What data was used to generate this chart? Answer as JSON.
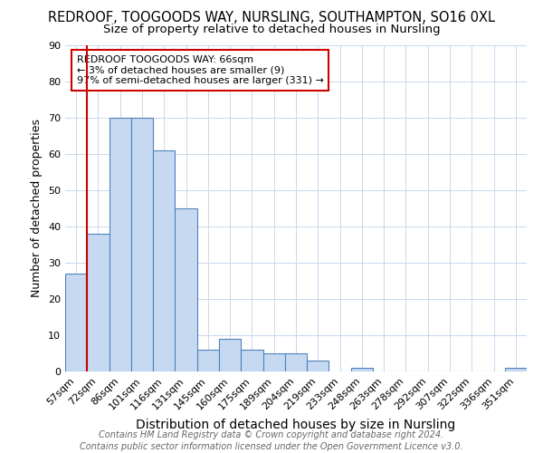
{
  "title": "REDROOF, TOOGOODS WAY, NURSLING, SOUTHAMPTON, SO16 0XL",
  "subtitle": "Size of property relative to detached houses in Nursling",
  "xlabel": "Distribution of detached houses by size in Nursling",
  "ylabel": "Number of detached properties",
  "categories": [
    "57sqm",
    "72sqm",
    "86sqm",
    "101sqm",
    "116sqm",
    "131sqm",
    "145sqm",
    "160sqm",
    "175sqm",
    "189sqm",
    "204sqm",
    "219sqm",
    "233sqm",
    "248sqm",
    "263sqm",
    "278sqm",
    "292sqm",
    "307sqm",
    "322sqm",
    "336sqm",
    "351sqm"
  ],
  "values": [
    27,
    38,
    70,
    70,
    61,
    45,
    6,
    9,
    6,
    5,
    5,
    3,
    0,
    1,
    0,
    0,
    0,
    0,
    0,
    0,
    1
  ],
  "bar_color": "#c6d9f1",
  "bar_edge_color": "#4f81bd",
  "highlight_line_color": "#cc0000",
  "ylim": [
    0,
    90
  ],
  "yticks": [
    0,
    10,
    20,
    30,
    40,
    50,
    60,
    70,
    80,
    90
  ],
  "annotation_text": "REDROOF TOOGOODS WAY: 66sqm\n← 3% of detached houses are smaller (9)\n97% of semi-detached houses are larger (331) →",
  "annotation_box_color": "#ffffff",
  "annotation_box_edge": "#cc0000",
  "footer1": "Contains HM Land Registry data © Crown copyright and database right 2024.",
  "footer2": "Contains public sector information licensed under the Open Government Licence v3.0.",
  "title_fontsize": 10.5,
  "subtitle_fontsize": 9.5,
  "xlabel_fontsize": 10,
  "ylabel_fontsize": 9,
  "tick_fontsize": 8,
  "annotation_fontsize": 8,
  "footer_fontsize": 7
}
